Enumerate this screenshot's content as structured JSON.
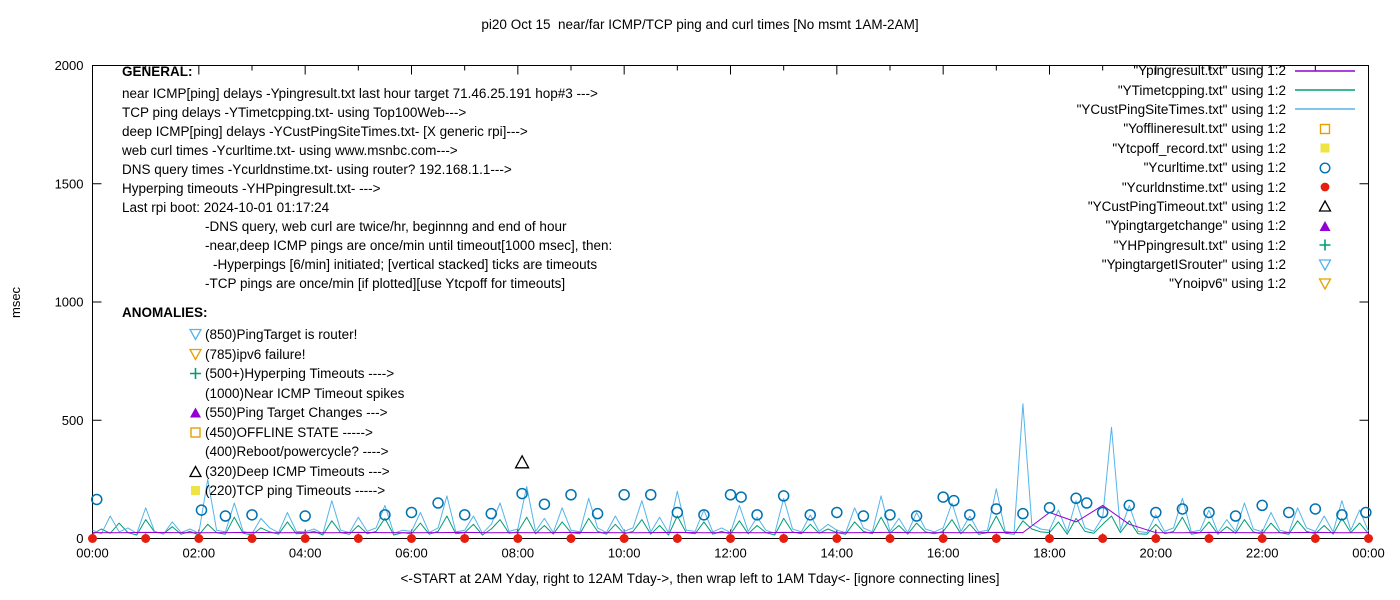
{
  "title": "pi20 Oct 15  near/far ICMP/TCP ping and curl times [No msmt 1AM-2AM]",
  "xlabel": "<-START at 2AM Yday, right to 12AM Tday->, then wrap left to 1AM Tday<- [ignore connecting lines]",
  "ylabel": "msec",
  "general": {
    "heading": "GENERAL:",
    "lines": [
      {
        "indent": 0,
        "text": "near ICMP[ping] delays -Ypingresult.txt last hour target 71.46.25.191 hop#3 --->"
      },
      {
        "indent": 0,
        "text": "TCP ping delays -YTimetcpping.txt- using Top100Web--->"
      },
      {
        "indent": 0,
        "text": "deep ICMP[ping] delays -YCustPingSiteTimes.txt- [X generic rpi]--->"
      },
      {
        "indent": 0,
        "text": "web curl times -Ycurltime.txt- using www.msnbc.com--->"
      },
      {
        "indent": 0,
        "text": "DNS query times -Ycurldnstime.txt- using router? 192.168.1.1--->"
      },
      {
        "indent": 0,
        "text": "Hyperping timeouts -YHPpingresult.txt- --->"
      },
      {
        "indent": 0,
        "text": "Last rpi boot: 2024-10-01 01:17:24"
      },
      {
        "indent": 1,
        "text": "-DNS query, web curl are twice/hr, beginnng and end of hour"
      },
      {
        "indent": 1,
        "text": "-near,deep ICMP pings are once/min until timeout[1000 msec], then:"
      },
      {
        "indent": 2,
        "text": "-Hyperpings [6/min] initiated; [vertical stacked] ticks are timeouts"
      },
      {
        "indent": 1,
        "text": "-TCP pings are once/min [if plotted][use Ytcpoff for timeouts]"
      }
    ]
  },
  "anomalies": {
    "heading": "ANOMALIES:",
    "items": [
      {
        "icon": "triangle-down-open",
        "color": "#56b4e9",
        "text": "(850)PingTarget is router!"
      },
      {
        "icon": "triangle-down-open",
        "color": "#e69f00",
        "text": "(785)ipv6 failure!"
      },
      {
        "icon": "plus",
        "color": "#009e73",
        "text": "(500+)Hyperping Timeouts ---->"
      },
      {
        "icon": "none",
        "color": "",
        "text": "(1000)Near ICMP Timeout spikes"
      },
      {
        "icon": "triangle-filled",
        "color": "#9400d3",
        "text": "(550)Ping Target Changes --->"
      },
      {
        "icon": "square-open",
        "color": "#e69f00",
        "text": "(450)OFFLINE STATE ----->"
      },
      {
        "icon": "none",
        "color": "",
        "text": "(400)Reboot/powercycle? ---->"
      },
      {
        "icon": "triangle-open",
        "color": "#000000",
        "text": "(320)Deep ICMP Timeouts --->"
      },
      {
        "icon": "square-filled",
        "color": "#f0e442",
        "text": "(220)TCP ping Timeouts ----->"
      }
    ]
  },
  "legend": {
    "entries": [
      {
        "label": "\"Ypingresult.txt\" using 1:2",
        "sample": "line",
        "color": "#9400d3"
      },
      {
        "label": "\"YTimetcpping.txt\" using 1:2",
        "sample": "line",
        "color": "#009e73"
      },
      {
        "label": "\"YCustPingSiteTimes.txt\" using 1:2",
        "sample": "line",
        "color": "#56b4e9"
      },
      {
        "label": "\"Yofflineresult.txt\" using 1:2",
        "sample": "square-open",
        "color": "#e69f00"
      },
      {
        "label": "\"Ytcpoff_record.txt\" using 1:2",
        "sample": "square-filled",
        "color": "#f0e442"
      },
      {
        "label": "\"Ycurltime.txt\" using 1:2",
        "sample": "circle-open",
        "color": "#0072b2"
      },
      {
        "label": "\"Ycurldnstime.txt\" using 1:2",
        "sample": "circle-filled",
        "color": "#e51e10"
      },
      {
        "label": "\"YCustPingTimeout.txt\" using 1:2",
        "sample": "triangle-open",
        "color": "#000000"
      },
      {
        "label": "\"Ypingtargetchange\" using 1:2",
        "sample": "triangle-filled",
        "color": "#9400d3"
      },
      {
        "label": "\"YHPpingresult.txt\" using 1:2",
        "sample": "plus",
        "color": "#009e73"
      },
      {
        "label": "\"YpingtargetISrouter\" using 1:2",
        "sample": "triangle-down-open",
        "color": "#56b4e9"
      },
      {
        "label": "\"Ynoipv6\" using 1:2",
        "sample": "triangle-down-open",
        "color": "#e69f00"
      }
    ]
  },
  "chart_data": {
    "type": "line",
    "title": "pi20 Oct 15  near/far ICMP/TCP ping and curl times [No msmt 1AM-2AM]",
    "xlabel": "<-START at 2AM Yday, right to 12AM Tday->, then wrap left to 1AM Tday<- [ignore connecting lines]",
    "ylabel": "msec",
    "xlim_hours": [
      0,
      24
    ],
    "ylim": [
      0,
      2000
    ],
    "y_ticks": [
      0,
      500,
      1000,
      1500,
      2000
    ],
    "x_ticks": {
      "hours": [
        0,
        2,
        4,
        6,
        8,
        10,
        12,
        14,
        16,
        18,
        20,
        22,
        24
      ],
      "labels": [
        "00:00",
        "02:00",
        "04:00",
        "06:00",
        "08:00",
        "10:00",
        "12:00",
        "14:00",
        "16:00",
        "18:00",
        "20:00",
        "22:00",
        "00:00"
      ]
    },
    "grid": false,
    "legend_position": "top-right-inside",
    "series": [
      {
        "name": "YTimetcpping.txt",
        "color": "#009e73",
        "step_min": 10,
        "values": [
          18,
          40,
          22,
          65,
          25,
          15,
          80,
          28,
          20,
          50,
          18,
          30,
          15,
          60,
          25,
          18,
          90,
          22,
          15,
          45,
          28,
          18,
          70,
          20,
          22,
          30,
          15,
          75,
          25,
          18,
          55,
          20,
          30,
          85,
          15,
          25,
          20,
          65,
          18,
          30,
          95,
          20,
          25,
          60,
          15,
          40,
          80,
          22,
          28,
          90,
          20,
          55,
          18,
          70,
          25,
          20,
          85,
          30,
          18,
          60,
          20,
          30,
          80,
          18,
          55,
          15,
          95,
          25,
          20,
          70,
          18,
          30,
          18,
          75,
          20,
          55,
          25,
          15,
          85,
          28,
          20,
          60,
          22,
          40,
          25,
          18,
          70,
          30,
          20,
          90,
          22,
          55,
          18,
          65,
          28,
          20,
          30,
          80,
          20,
          60,
          18,
          25,
          95,
          22,
          18,
          75,
          40,
          28,
          25,
          70,
          18,
          85,
          30,
          22,
          60,
          95,
          25,
          75,
          20,
          18,
          60,
          20,
          30,
          90,
          18,
          25,
          70,
          18,
          50,
          22,
          80,
          28,
          18,
          65,
          25,
          18,
          75,
          30,
          20,
          55,
          18,
          85,
          25,
          65,
          20
        ]
      },
      {
        "name": "YCustPingSiteTimes.txt",
        "color": "#56b4e9",
        "step_min": 10,
        "values": [
          35,
          20,
          95,
          28,
          45,
          22,
          130,
          30,
          18,
          70,
          25,
          40,
          22,
          250,
          35,
          28,
          150,
          30,
          20,
          85,
          45,
          25,
          110,
          30,
          28,
          40,
          20,
          160,
          35,
          25,
          90,
          30,
          45,
          140,
          22,
          35,
          30,
          110,
          25,
          45,
          180,
          28,
          35,
          95,
          22,
          60,
          150,
          30,
          40,
          220,
          30,
          85,
          25,
          130,
          35,
          28,
          170,
          45,
          25,
          95,
          30,
          45,
          160,
          28,
          90,
          25,
          200,
          35,
          30,
          120,
          28,
          45,
          25,
          140,
          30,
          90,
          35,
          22,
          170,
          40,
          28,
          100,
          30,
          60,
          35,
          25,
          130,
          45,
          28,
          180,
          30,
          85,
          25,
          110,
          40,
          28,
          45,
          150,
          30,
          95,
          28,
          35,
          210,
          30,
          25,
          570,
          60,
          40,
          35,
          120,
          28,
          160,
          45,
          30,
          90,
          470,
          35,
          140,
          30,
          25,
          100,
          30,
          45,
          170,
          28,
          35,
          120,
          25,
          80,
          30,
          150,
          40,
          28,
          110,
          35,
          25,
          130,
          45,
          30,
          95,
          28,
          160,
          35,
          120,
          30
        ]
      },
      {
        "name": "Ypingresult.txt",
        "color": "#9400d3",
        "step_min": 30,
        "values": [
          25,
          24,
          26,
          25,
          24,
          25,
          26,
          24,
          25,
          24,
          26,
          25,
          24,
          25,
          26,
          24,
          25,
          24,
          26,
          25,
          24,
          25,
          26,
          24,
          25,
          24,
          26,
          25,
          24,
          25,
          26,
          24,
          25,
          24,
          26,
          25,
          110,
          70,
          140,
          60,
          25,
          24,
          26,
          25,
          24,
          25,
          26,
          24,
          25
        ]
      }
    ],
    "markers": [
      {
        "name": "Ycurltime.txt",
        "marker": "circle-open",
        "color": "#0072b2",
        "points": [
          [
            0.08,
            165
          ],
          [
            2.05,
            120
          ],
          [
            2.5,
            95
          ],
          [
            3.0,
            100
          ],
          [
            4.0,
            95
          ],
          [
            5.5,
            100
          ],
          [
            6.0,
            110
          ],
          [
            6.5,
            150
          ],
          [
            7.0,
            100
          ],
          [
            7.5,
            105
          ],
          [
            8.08,
            190
          ],
          [
            8.5,
            145
          ],
          [
            9.0,
            185
          ],
          [
            9.5,
            105
          ],
          [
            10.0,
            185
          ],
          [
            10.5,
            185
          ],
          [
            11.0,
            110
          ],
          [
            11.5,
            100
          ],
          [
            12.0,
            185
          ],
          [
            12.2,
            175
          ],
          [
            12.5,
            100
          ],
          [
            13.0,
            180
          ],
          [
            13.5,
            100
          ],
          [
            14.0,
            110
          ],
          [
            14.5,
            95
          ],
          [
            15.0,
            100
          ],
          [
            15.5,
            95
          ],
          [
            16.0,
            175
          ],
          [
            16.2,
            160
          ],
          [
            16.5,
            100
          ],
          [
            17.0,
            125
          ],
          [
            17.5,
            105
          ],
          [
            18.0,
            130
          ],
          [
            18.5,
            170
          ],
          [
            18.7,
            150
          ],
          [
            19.0,
            110
          ],
          [
            19.5,
            140
          ],
          [
            20.0,
            110
          ],
          [
            20.5,
            125
          ],
          [
            21.0,
            110
          ],
          [
            21.5,
            95
          ],
          [
            22.0,
            140
          ],
          [
            22.5,
            110
          ],
          [
            23.0,
            125
          ],
          [
            23.5,
            100
          ],
          [
            23.95,
            110
          ]
        ]
      },
      {
        "name": "Ycurldnstime.txt",
        "marker": "circle-filled",
        "color": "#e51e10",
        "points": [
          [
            0,
            0
          ],
          [
            1,
            0
          ],
          [
            2,
            0
          ],
          [
            3,
            0
          ],
          [
            4,
            0
          ],
          [
            5,
            0
          ],
          [
            6,
            0
          ],
          [
            7,
            0
          ],
          [
            8,
            0
          ],
          [
            9,
            0
          ],
          [
            10,
            0
          ],
          [
            11,
            0
          ],
          [
            12,
            0
          ],
          [
            13,
            0
          ],
          [
            14,
            0
          ],
          [
            15,
            0
          ],
          [
            16,
            0
          ],
          [
            17,
            0
          ],
          [
            18,
            0
          ],
          [
            19,
            0
          ],
          [
            20,
            0
          ],
          [
            21,
            0
          ],
          [
            22,
            0
          ],
          [
            23,
            0
          ],
          [
            24,
            0
          ]
        ]
      },
      {
        "name": "YCustPingTimeout.txt",
        "marker": "triangle-open",
        "color": "#000000",
        "points": [
          [
            8.08,
            320
          ]
        ]
      }
    ]
  }
}
